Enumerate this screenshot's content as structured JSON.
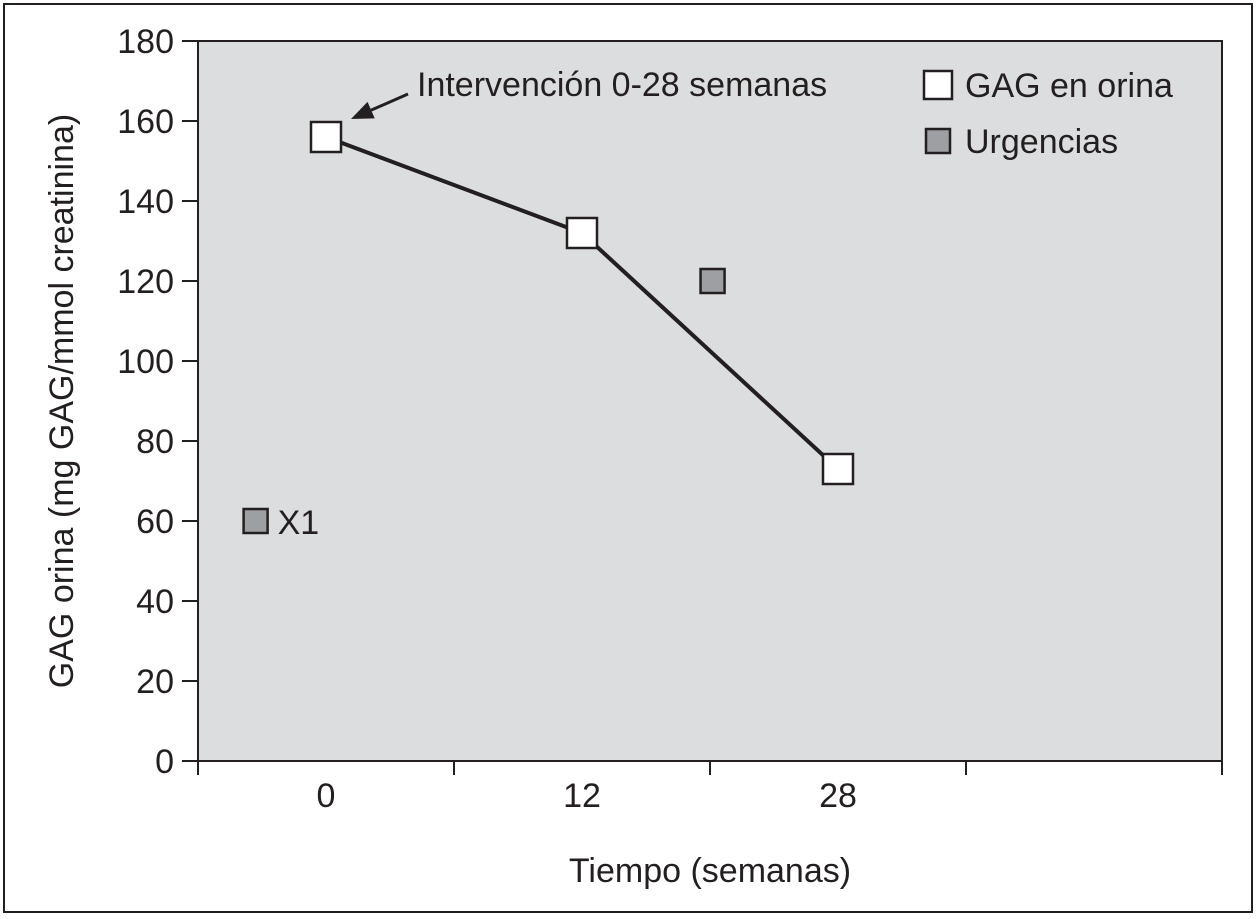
{
  "chart_data": {
    "type": "line",
    "xlabel": "Tiempo (semanas)",
    "ylabel": "GAG orina (mg GAG/mmol creatinina)",
    "ylim": [
      0,
      180
    ],
    "yticks": [
      0,
      20,
      40,
      60,
      80,
      100,
      120,
      140,
      160,
      180
    ],
    "x_slots": 8,
    "x_tick_labels": [
      {
        "slot": 1,
        "label": "0"
      },
      {
        "slot": 3,
        "label": "12"
      },
      {
        "slot": 5,
        "label": "28"
      }
    ],
    "series": [
      {
        "name": "GAG en orina",
        "marker": "square-open",
        "color": "#ffffff",
        "connected": true,
        "points": [
          {
            "slot": 1,
            "y": 156
          },
          {
            "slot": 3,
            "y": 132
          },
          {
            "slot": 5,
            "y": 73
          }
        ]
      },
      {
        "name": "Urgencias",
        "marker": "square-filled",
        "color": "#9d9fa2",
        "connected": false,
        "points": [
          {
            "slot": 0.45,
            "y": 60,
            "label": "X1"
          },
          {
            "slot": 4.02,
            "y": 120
          }
        ]
      }
    ],
    "annotation": {
      "text": "Intervención 0-28 semanas",
      "target_series": 0,
      "target_point": 0
    },
    "legend_position": "top-right",
    "plot_background": "#dcdddf",
    "line_color": "#231f20"
  }
}
